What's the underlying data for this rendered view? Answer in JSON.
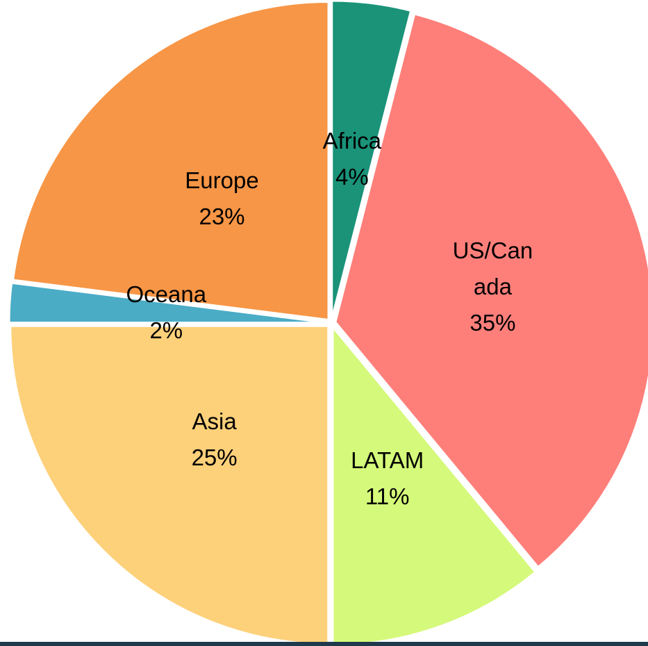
{
  "chart_data": {
    "type": "pie",
    "categories": [
      "Africa",
      "US/Canada",
      "LATAM",
      "Asia",
      "Oceana",
      "Europe"
    ],
    "values": [
      4,
      35,
      11,
      25,
      2,
      23
    ],
    "value_labels": [
      "4%",
      "35%",
      "11%",
      "25%",
      "2%",
      "23%"
    ],
    "colors": [
      "#1a9379",
      "#fe7f7a",
      "#d5f97a",
      "#fdd07a",
      "#4bacc6",
      "#f79646"
    ]
  }
}
